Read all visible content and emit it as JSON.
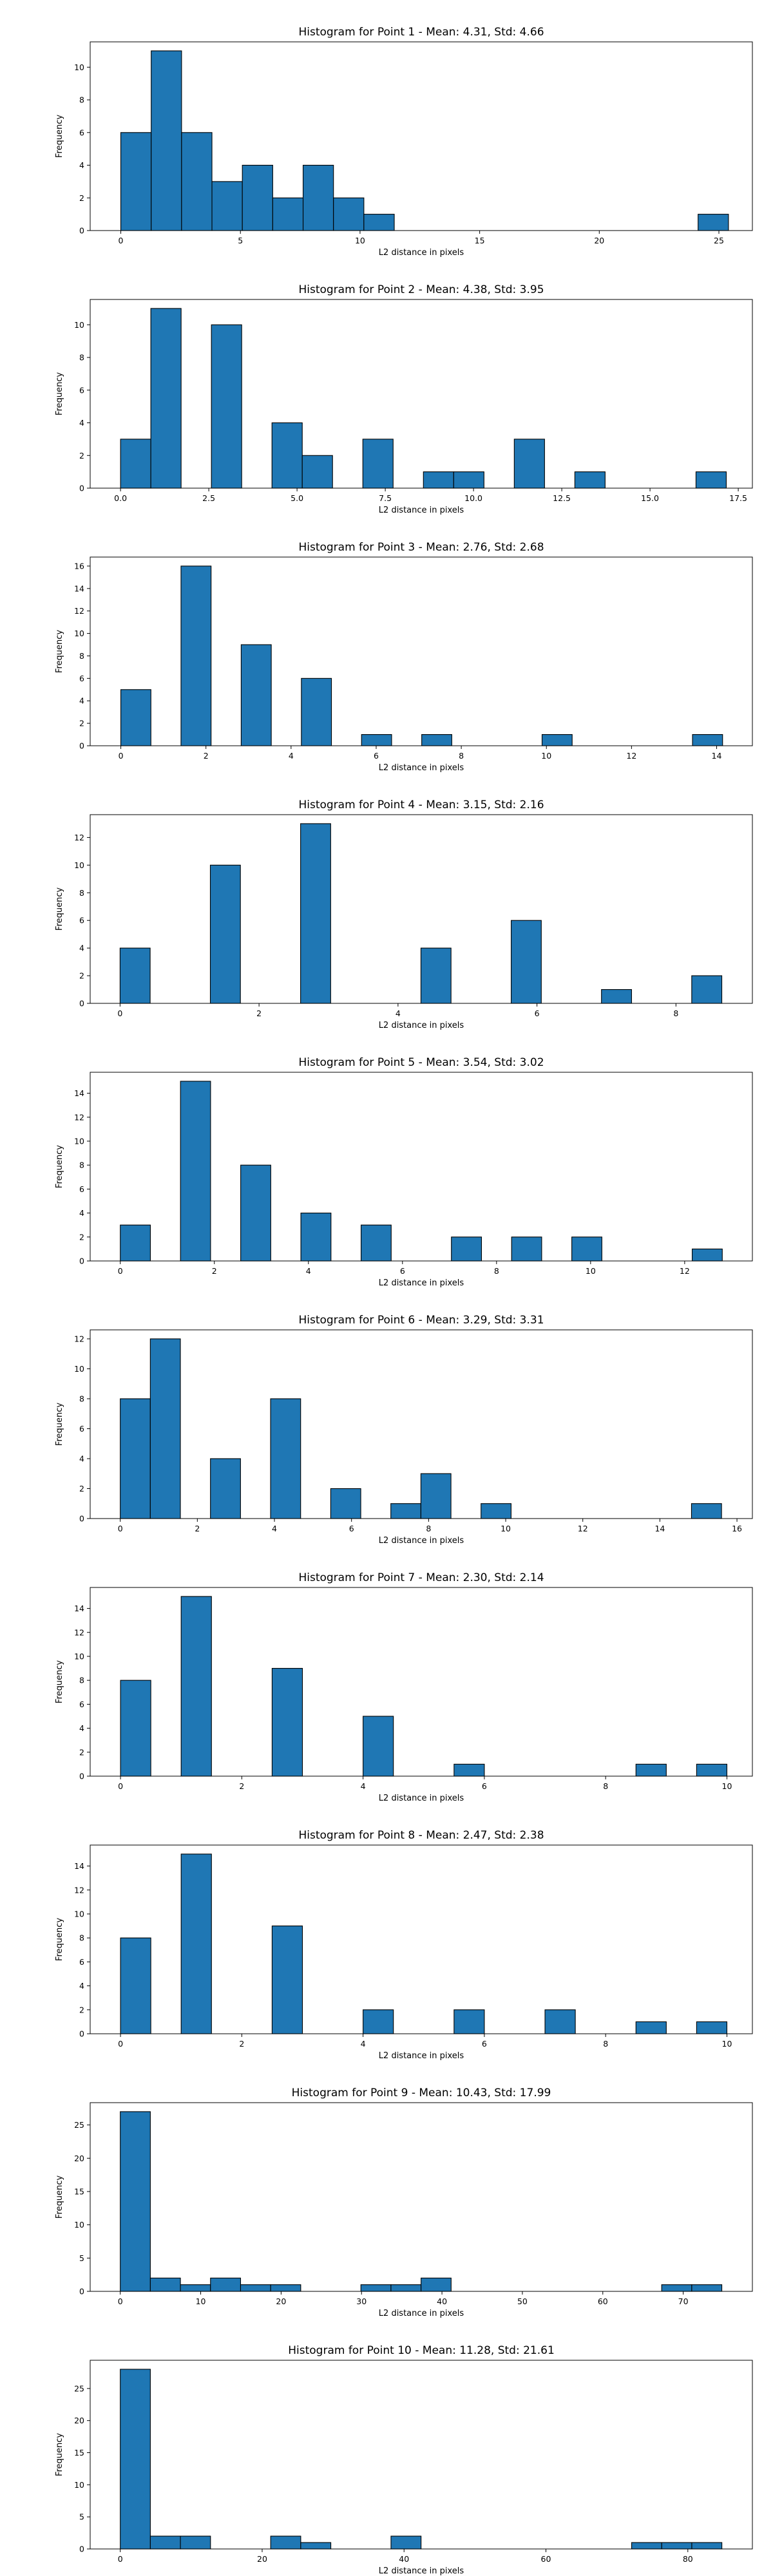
{
  "chart_data": [
    {
      "type": "bar",
      "title": "Histogram for Point 1 - Mean: 4.31, Std: 4.66",
      "xlabel": "L2 distance in pixels",
      "ylabel": "Frequency",
      "xlim": [
        -1.28,
        26.4
      ],
      "ylim": [
        0,
        11.55
      ],
      "xticks": [
        0,
        5,
        10,
        15,
        20,
        25
      ],
      "yticks": [
        0,
        2,
        4,
        6,
        8,
        10
      ],
      "bin_edges": [
        0,
        1.27,
        2.54,
        3.81,
        5.08,
        6.35,
        7.62,
        8.89,
        10.16,
        11.43,
        12.7,
        13.97,
        15.24,
        16.51,
        17.78,
        19.05,
        20.32,
        21.59,
        22.86,
        24.13,
        25.4
      ],
      "values": [
        6,
        11,
        6,
        3,
        4,
        2,
        4,
        2,
        1,
        0,
        0,
        0,
        0,
        0,
        0,
        0,
        0,
        0,
        0,
        1
      ],
      "color": "#1f77b4"
    },
    {
      "type": "bar",
      "title": "Histogram for Point 2 - Mean: 4.38, Std: 3.95",
      "xlabel": "L2 distance in pixels",
      "ylabel": "Frequency",
      "xlim": [
        -0.86,
        17.9
      ],
      "ylim": [
        0,
        11.55
      ],
      "xticks": [
        0.0,
        2.5,
        5.0,
        7.5,
        10.0,
        12.5,
        15.0,
        17.5
      ],
      "yticks": [
        0,
        2,
        4,
        6,
        8,
        10
      ],
      "bin_edges": [
        0,
        0.858,
        1.716,
        2.574,
        3.432,
        4.29,
        5.148,
        6.006,
        6.864,
        7.722,
        8.58,
        9.438,
        10.296,
        11.154,
        12.012,
        12.87,
        13.728,
        14.586,
        15.444,
        16.302,
        17.16
      ],
      "values": [
        3,
        11,
        0,
        10,
        0,
        4,
        2,
        0,
        3,
        0,
        1,
        1,
        0,
        3,
        0,
        1,
        0,
        0,
        0,
        1
      ],
      "color": "#1f77b4"
    },
    {
      "type": "bar",
      "title": "Histogram for Point 3 - Mean: 2.76, Std: 2.68",
      "xlabel": "L2 distance in pixels",
      "ylabel": "Frequency",
      "xlim": [
        -0.72,
        14.84
      ],
      "ylim": [
        0,
        16.8
      ],
      "xticks": [
        0,
        2,
        4,
        6,
        8,
        10,
        12,
        14
      ],
      "yticks": [
        0,
        2,
        4,
        6,
        8,
        10,
        12,
        14,
        16
      ],
      "bin_edges": [
        0,
        0.707,
        1.414,
        2.121,
        2.828,
        3.535,
        4.242,
        4.949,
        5.656,
        6.363,
        7.07,
        7.777,
        8.484,
        9.191,
        9.898,
        10.605,
        11.312,
        12.019,
        12.726,
        13.433,
        14.14
      ],
      "values": [
        5,
        0,
        16,
        0,
        9,
        0,
        6,
        0,
        1,
        0,
        1,
        0,
        0,
        0,
        1,
        0,
        0,
        0,
        0,
        1
      ],
      "color": "#1f77b4"
    },
    {
      "type": "bar",
      "title": "Histogram for Point 4 - Mean: 3.15, Std: 2.16",
      "xlabel": "L2 distance in pixels",
      "ylabel": "Frequency",
      "xlim": [
        -0.43,
        9.1
      ],
      "ylim": [
        0,
        13.65
      ],
      "xticks": [
        0,
        2,
        4,
        6,
        8
      ],
      "yticks": [
        0,
        2,
        4,
        6,
        8,
        10,
        12
      ],
      "bin_edges": [
        0,
        0.433,
        0.866,
        1.299,
        1.732,
        2.165,
        2.598,
        3.031,
        3.464,
        3.897,
        4.33,
        4.763,
        5.196,
        5.629,
        6.062,
        6.495,
        6.928,
        7.361,
        7.794,
        8.227,
        8.66
      ],
      "values": [
        4,
        0,
        0,
        10,
        0,
        0,
        13,
        0,
        0,
        0,
        4,
        0,
        0,
        6,
        0,
        0,
        1,
        0,
        0,
        2
      ],
      "color": "#1f77b4"
    },
    {
      "type": "bar",
      "title": "Histogram for Point 5 - Mean: 3.54, Std: 3.02",
      "xlabel": "L2 distance in pixels",
      "ylabel": "Frequency",
      "xlim": [
        -0.64,
        13.44
      ],
      "ylim": [
        0,
        15.75
      ],
      "xticks": [
        0,
        2,
        4,
        6,
        8,
        10,
        12
      ],
      "yticks": [
        0,
        2,
        4,
        6,
        8,
        10,
        12,
        14
      ],
      "bin_edges": [
        0,
        0.64,
        1.28,
        1.92,
        2.56,
        3.2,
        3.84,
        4.48,
        5.12,
        5.76,
        6.4,
        7.04,
        7.68,
        8.32,
        8.96,
        9.6,
        10.24,
        10.88,
        11.52,
        12.16,
        12.8
      ],
      "values": [
        3,
        0,
        15,
        0,
        8,
        0,
        4,
        0,
        3,
        0,
        0,
        2,
        0,
        2,
        0,
        2,
        0,
        0,
        0,
        1
      ],
      "color": "#1f77b4"
    },
    {
      "type": "bar",
      "title": "Histogram for Point 6 - Mean: 3.29, Std: 3.31",
      "xlabel": "L2 distance in pixels",
      "ylabel": "Frequency",
      "xlim": [
        -0.78,
        16.4
      ],
      "ylim": [
        0,
        12.6
      ],
      "xticks": [
        0,
        2,
        4,
        6,
        8,
        10,
        12,
        14,
        16
      ],
      "yticks": [
        0,
        2,
        4,
        6,
        8,
        10,
        12
      ],
      "bin_edges": [
        0,
        0.78,
        1.56,
        2.34,
        3.12,
        3.9,
        4.68,
        5.46,
        6.24,
        7.02,
        7.8,
        8.58,
        9.36,
        10.14,
        10.92,
        11.7,
        12.48,
        13.26,
        14.04,
        14.82,
        15.6
      ],
      "values": [
        8,
        12,
        0,
        4,
        0,
        8,
        0,
        2,
        0,
        1,
        3,
        0,
        1,
        0,
        0,
        0,
        0,
        0,
        0,
        1
      ],
      "color": "#1f77b4"
    },
    {
      "type": "bar",
      "title": "Histogram for Point 7 - Mean: 2.30, Std: 2.14",
      "xlabel": "L2 distance in pixels",
      "ylabel": "Frequency",
      "xlim": [
        -0.5,
        10.42
      ],
      "ylim": [
        0,
        15.75
      ],
      "xticks": [
        0,
        2,
        4,
        6,
        8,
        10
      ],
      "yticks": [
        0,
        2,
        4,
        6,
        8,
        10,
        12,
        14
      ],
      "bin_edges": [
        0,
        0.5,
        1,
        1.5,
        2,
        2.5,
        3,
        3.5,
        4,
        4.5,
        5,
        5.5,
        6,
        6.5,
        7,
        7.5,
        8,
        8.5,
        9,
        9.5,
        10
      ],
      "values": [
        8,
        0,
        15,
        0,
        0,
        9,
        0,
        0,
        5,
        0,
        0,
        1,
        0,
        0,
        0,
        0,
        0,
        1,
        0,
        1
      ],
      "color": "#1f77b4"
    },
    {
      "type": "bar",
      "title": "Histogram for Point 8 - Mean: 2.47, Std: 2.38",
      "xlabel": "L2 distance in pixels",
      "ylabel": "Frequency",
      "xlim": [
        -0.5,
        10.42
      ],
      "ylim": [
        0,
        15.75
      ],
      "xticks": [
        0,
        2,
        4,
        6,
        8,
        10
      ],
      "yticks": [
        0,
        2,
        4,
        6,
        8,
        10,
        12,
        14
      ],
      "bin_edges": [
        0,
        0.5,
        1,
        1.5,
        2,
        2.5,
        3,
        3.5,
        4,
        4.5,
        5,
        5.5,
        6,
        6.5,
        7,
        7.5,
        8,
        8.5,
        9,
        9.5,
        10
      ],
      "values": [
        8,
        0,
        15,
        0,
        0,
        9,
        0,
        0,
        2,
        0,
        0,
        2,
        0,
        0,
        2,
        0,
        0,
        1,
        0,
        1
      ],
      "color": "#1f77b4"
    },
    {
      "type": "bar",
      "title": "Histogram for Point 9 - Mean: 10.43, Std: 17.99",
      "xlabel": "L2 distance in pixels",
      "ylabel": "Frequency",
      "xlim": [
        -3.74,
        78.6
      ],
      "ylim": [
        0,
        28.35
      ],
      "xticks": [
        0,
        10,
        20,
        30,
        40,
        50,
        60,
        70
      ],
      "yticks": [
        0,
        5,
        10,
        15,
        20,
        25
      ],
      "bin_edges": [
        0,
        3.74,
        7.48,
        11.22,
        14.96,
        18.7,
        22.44,
        26.18,
        29.92,
        33.66,
        37.4,
        41.14,
        44.88,
        48.62,
        52.36,
        56.1,
        59.84,
        63.58,
        67.32,
        71.06,
        74.8
      ],
      "values": [
        27,
        2,
        1,
        2,
        1,
        1,
        0,
        0,
        1,
        1,
        2,
        0,
        0,
        0,
        0,
        0,
        0,
        0,
        1,
        1
      ],
      "color": "#1f77b4"
    },
    {
      "type": "bar",
      "title": "Histogram for Point 10 - Mean: 11.28, Std: 21.61",
      "xlabel": "L2 distance in pixels",
      "ylabel": "Frequency",
      "xlim": [
        -4.24,
        89.1
      ],
      "ylim": [
        0,
        29.4
      ],
      "xticks": [
        0,
        20,
        40,
        60,
        80
      ],
      "yticks": [
        0,
        5,
        10,
        15,
        20,
        25
      ],
      "bin_edges": [
        0,
        4.24,
        8.48,
        12.72,
        16.96,
        21.2,
        25.44,
        29.68,
        33.92,
        38.16,
        42.4,
        46.64,
        50.88,
        55.12,
        59.36,
        63.6,
        67.84,
        72.08,
        76.32,
        80.56,
        84.8
      ],
      "values": [
        28,
        2,
        2,
        0,
        0,
        2,
        1,
        0,
        0,
        2,
        0,
        0,
        0,
        0,
        0,
        0,
        0,
        1,
        1,
        1
      ],
      "color": "#1f77b4"
    }
  ]
}
